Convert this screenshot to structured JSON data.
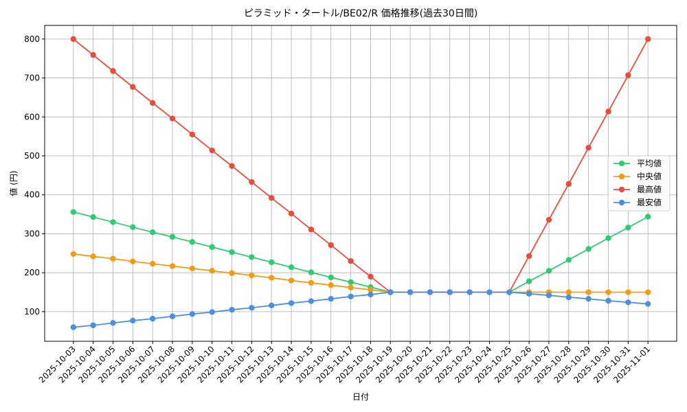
{
  "chart_data": {
    "type": "line",
    "title": "ピラミッド・タートル/BE02/R 価格推移(過去30日間)",
    "x_label": "日付",
    "y_label": "値 (円)",
    "categories": [
      "2025-10-03",
      "2025-10-04",
      "2025-10-05",
      "2025-10-06",
      "2025-10-07",
      "2025-10-08",
      "2025-10-09",
      "2025-10-10",
      "2025-10-11",
      "2025-10-12",
      "2025-10-13",
      "2025-10-14",
      "2025-10-15",
      "2025-10-16",
      "2025-10-17",
      "2025-10-18",
      "2025-10-19",
      "2025-10-20",
      "2025-10-21",
      "2025-10-22",
      "2025-10-23",
      "2025-10-24",
      "2025-10-25",
      "2025-10-26",
      "2025-10-27",
      "2025-10-28",
      "2025-10-29",
      "2025-10-30",
      "2025-10-31",
      "2025-11-01"
    ],
    "series": [
      {
        "name": "平均値",
        "color": "#2ecc71",
        "values": [
          356,
          343,
          330,
          317,
          304,
          292,
          279,
          266,
          253,
          240,
          227,
          214,
          201,
          188,
          176,
          163,
          150,
          150,
          150,
          150,
          150,
          150,
          150,
          178,
          205,
          233,
          261,
          289,
          316,
          344
        ]
      },
      {
        "name": "中央値",
        "color": "#f39c12",
        "values": [
          248,
          242,
          236,
          229,
          223,
          217,
          211,
          205,
          199,
          193,
          187,
          180,
          174,
          168,
          162,
          156,
          150,
          150,
          150,
          150,
          150,
          150,
          150,
          150,
          150,
          150,
          150,
          150,
          150,
          150
        ]
      },
      {
        "name": "最高値",
        "color": "#e74c3c",
        "values": [
          800,
          759,
          718,
          677,
          636,
          596,
          555,
          514,
          474,
          433,
          392,
          352,
          311,
          271,
          230,
          190,
          150,
          150,
          150,
          150,
          150,
          150,
          150,
          243,
          336,
          428,
          521,
          614,
          707,
          800
        ]
      },
      {
        "name": "最安値",
        "color": "#4a90e2",
        "values": [
          60,
          65,
          71,
          77,
          82,
          88,
          94,
          99,
          105,
          110,
          116,
          122,
          127,
          133,
          139,
          144,
          150,
          150,
          150,
          150,
          150,
          150,
          150,
          146,
          142,
          137,
          133,
          128,
          124,
          120
        ]
      }
    ],
    "ylim": [
      24,
      835
    ],
    "yticks": [
      100,
      200,
      300,
      400,
      500,
      600,
      700,
      800
    ],
    "grid": true,
    "legend": "center right"
  }
}
